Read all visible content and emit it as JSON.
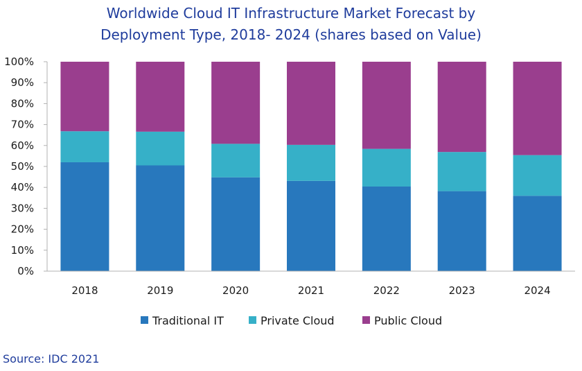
{
  "title_line1": "Worldwide Cloud IT Infrastructure Market Forecast by",
  "title_line2": "Deployment Type, 2018- 2024 (shares based on Value)",
  "source": "Source: IDC 2021",
  "chart_data": {
    "type": "bar",
    "stacked": true,
    "title": "Worldwide Cloud IT Infrastructure Market Forecast by Deployment Type, 2018- 2024 (shares based on Value)",
    "categories": [
      "2018",
      "2019",
      "2020",
      "2021",
      "2022",
      "2023",
      "2024"
    ],
    "series": [
      {
        "name": "Traditional IT",
        "color": "#2878bd",
        "values": [
          52,
          50.5,
          44.8,
          43.1,
          40.4,
          38.2,
          36
        ]
      },
      {
        "name": "Private Cloud",
        "color": "#36b0c8",
        "values": [
          14.8,
          16.1,
          16,
          17.2,
          18,
          18.7,
          19.4
        ]
      },
      {
        "name": "Public Cloud",
        "color": "#9a3e8e",
        "values": [
          33.2,
          33.4,
          39.2,
          39.7,
          41.6,
          43.1,
          44.6
        ]
      }
    ],
    "yticks": [
      "0%",
      "10%",
      "20%",
      "30%",
      "40%",
      "50%",
      "60%",
      "70%",
      "80%",
      "90%",
      "100%"
    ],
    "ylim": [
      0,
      100
    ],
    "grid": false,
    "legend_position": "bottom"
  }
}
